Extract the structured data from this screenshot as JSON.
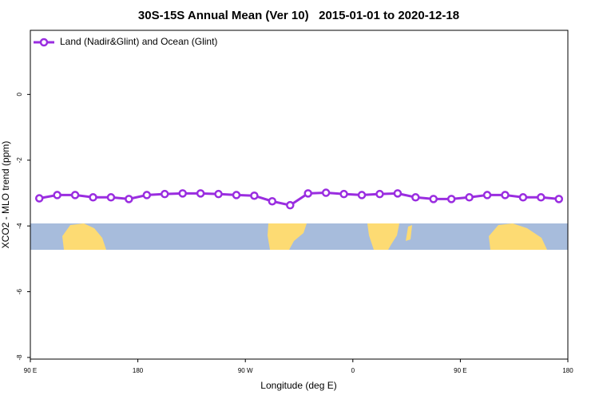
{
  "chart_data": {
    "type": "line",
    "title": "30S-15S Annual Mean (Ver 10)   2015-01-01 to 2020-12-18",
    "x_label": "Longitude (deg E)",
    "y_label": "XCO2 - MLO trend (ppm)",
    "x": [
      97.5,
      112.5,
      127.5,
      142.5,
      157.5,
      172.5,
      187.5,
      202.5,
      217.5,
      232.5,
      247.5,
      262.5,
      277.5,
      292.5,
      307.5,
      322.5,
      337.5,
      352.5,
      367.5,
      382.5,
      397.5,
      412.5,
      427.5,
      442.5,
      457.5,
      472.5,
      487.5,
      502.5,
      517.5,
      532.5
    ],
    "series": [
      {
        "name": "Land (Nadir&Glint) and Ocean (Glint)",
        "color": "#9a2de0",
        "values": [
          -3.16,
          -3.06,
          -3.06,
          -3.13,
          -3.13,
          -3.18,
          -3.06,
          -3.03,
          -3.01,
          -3.01,
          -3.03,
          -3.06,
          -3.08,
          -3.25,
          -3.37,
          -3.01,
          -2.99,
          -3.03,
          -3.06,
          -3.03,
          -3.01,
          -3.13,
          -3.18,
          -3.18,
          -3.13,
          -3.06,
          -3.06,
          -3.13,
          -3.13,
          -3.18
        ]
      }
    ],
    "xlim": [
      90,
      540
    ],
    "xticks": [
      {
        "value": 90,
        "label": "90 E"
      },
      {
        "value": 180,
        "label": "180"
      },
      {
        "value": 270,
        "label": "90 W"
      },
      {
        "value": 360,
        "label": "0"
      },
      {
        "value": 450,
        "label": "90 E"
      },
      {
        "value": 540,
        "label": "180"
      }
    ],
    "ylim": [
      -8.05,
      1.95
    ],
    "yticks": [
      0,
      -2,
      -4,
      -6,
      -8
    ],
    "legend": "top-left"
  }
}
